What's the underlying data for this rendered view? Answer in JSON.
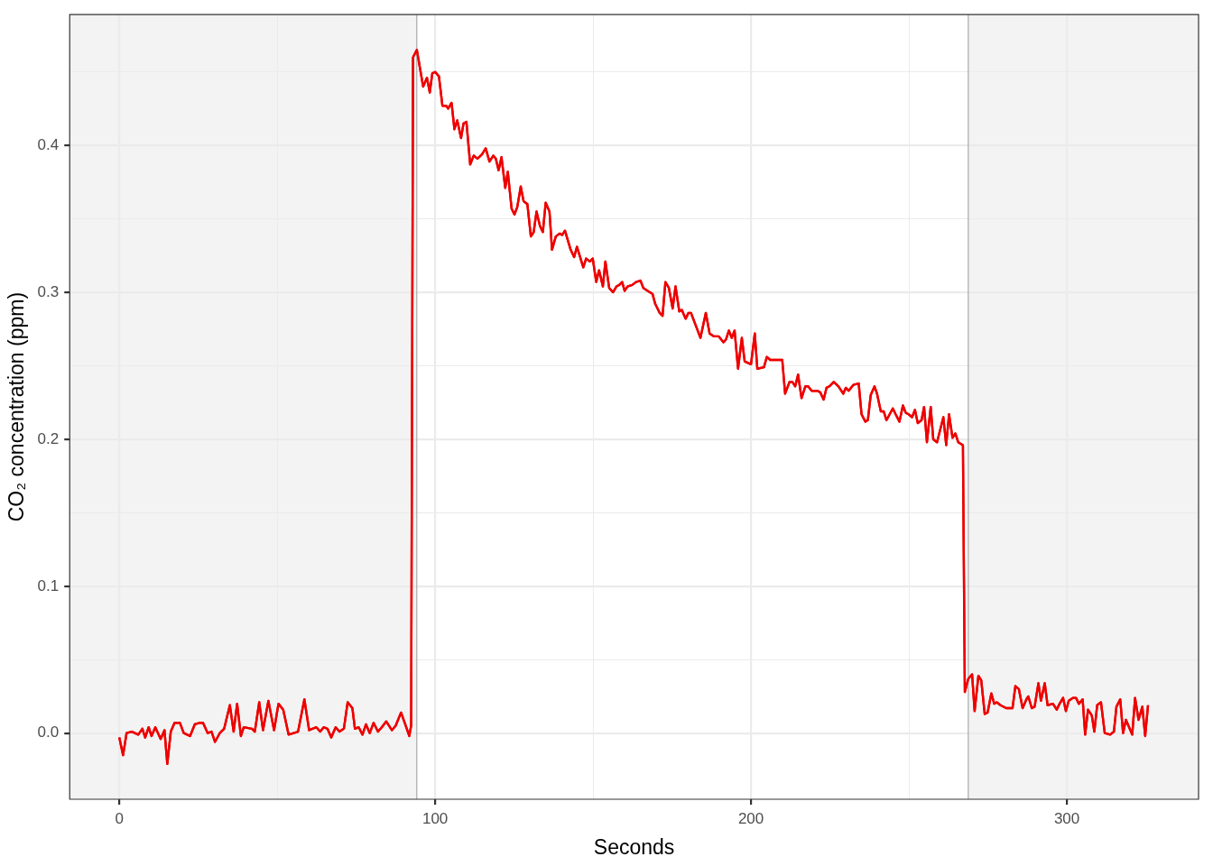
{
  "chart_data": {
    "type": "line",
    "xlabel": "Seconds",
    "ylabel": "CO₂ concentration (ppm)",
    "color": "#ee0000",
    "marker": "none",
    "line_style": "solid",
    "legend": false,
    "grid": true,
    "xlim": [
      -15.7,
      341.7
    ],
    "ylim": [
      -0.045,
      0.489
    ],
    "xticks": [
      0,
      {
        "value": 50,
        "label": null
      },
      100,
      {
        "value": 150,
        "label": null
      },
      200,
      {
        "value": 250,
        "label": null
      },
      300
    ],
    "yticks": [
      {
        "value": 0,
        "label": "0.0"
      },
      {
        "value": 0.05,
        "label": null
      },
      {
        "value": 0.1,
        "label": "0.1"
      },
      {
        "value": 0.15,
        "label": null
      },
      {
        "value": 0.2,
        "label": "0.2"
      },
      {
        "value": 0.25,
        "label": null
      },
      {
        "value": 0.3,
        "label": "0.3"
      },
      {
        "value": 0.35,
        "label": null
      },
      {
        "value": 0.4,
        "label": "0.4"
      },
      {
        "value": 0.45,
        "label": null
      }
    ],
    "bands": [
      {
        "axis": "x",
        "from": -15.7,
        "to": 94.2,
        "color": "#f3f3f3"
      },
      {
        "axis": "x",
        "from": 268.8,
        "to": 341.7,
        "color": "#f3f3f3"
      }
    ],
    "ref_lines": [
      {
        "axis": "x",
        "value": 94.2,
        "color": "#9a9a9a"
      },
      {
        "axis": "x",
        "value": 268.8,
        "color": "#9a9a9a"
      }
    ],
    "x": [
      0,
      1.2,
      2.3,
      4,
      6,
      7.3,
      8.2,
      9.3,
      10.2,
      11.4,
      13.1,
      14.3,
      15.2,
      16.3,
      17.5,
      19.2,
      20.4,
      22.4,
      23.9,
      25.4,
      26.5,
      28,
      29.2,
      30.3,
      31.8,
      33.2,
      35,
      36.2,
      37.3,
      38.5,
      39.4,
      42,
      42.9,
      44.3,
      45.5,
      47.2,
      49,
      50.4,
      51.9,
      53.6,
      56.6,
      58.6,
      60.1,
      62.4,
      63.6,
      64.7,
      65.9,
      67.1,
      68.5,
      69.7,
      71.1,
      72.3,
      73.8,
      74.6,
      75.8,
      77,
      78.1,
      79.3,
      80.5,
      81.9,
      83.1,
      84.5,
      86.3,
      87.5,
      89.2,
      90.7,
      91.8,
      92.4,
      93,
      94.2,
      96.2,
      97.4,
      98.3,
      99.1,
      100,
      101.2,
      102.3,
      103.5,
      104.1,
      105.2,
      106.1,
      107,
      108.2,
      109,
      109.9,
      111.1,
      112.2,
      113.4,
      114.9,
      116,
      117.2,
      118.4,
      119.2,
      120.1,
      121,
      122.2,
      123,
      124.2,
      125.1,
      126,
      127.1,
      128,
      129.2,
      130.3,
      131.2,
      132.1,
      133.2,
      134.1,
      135,
      136.2,
      137,
      138.2,
      139.4,
      140.2,
      141.1,
      142.9,
      144,
      144.9,
      146.9,
      147.8,
      149,
      149.9,
      151,
      151.9,
      153.1,
      153.9,
      155.1,
      156.3,
      157.4,
      158.3,
      159.2,
      160,
      160.9,
      162.4,
      163.6,
      165,
      165.9,
      167.3,
      168.8,
      169.7,
      171.1,
      172,
      172.9,
      174,
      175.2,
      176.1,
      177.3,
      178.1,
      179.3,
      180.2,
      181,
      184,
      185.7,
      186.9,
      188.3,
      189.8,
      191.3,
      192.1,
      193,
      193.9,
      194.8,
      195.9,
      197.1,
      198,
      200,
      201.2,
      202,
      204.1,
      205,
      206.1,
      207,
      208.2,
      209.9,
      210.8,
      212.2,
      213.1,
      214,
      214.9,
      216,
      217.2,
      218.1,
      219.2,
      221,
      221.9,
      223,
      223.9,
      224.8,
      226.2,
      227.7,
      229.2,
      230,
      230.9,
      232.4,
      234.1,
      235,
      236.2,
      237,
      237.9,
      239.1,
      239.9,
      241.1,
      242,
      242.9,
      244.9,
      245.8,
      247,
      248.1,
      249,
      249.9,
      251,
      251.9,
      252.8,
      254,
      254.8,
      255.7,
      256.9,
      257.7,
      258.9,
      260.9,
      261.8,
      262.7,
      263.8,
      264.7,
      265.6,
      267.1,
      267.7,
      268.8,
      270,
      270.8,
      272,
      272.9,
      274,
      274.9,
      276.1,
      277,
      277.8,
      279,
      280.8,
      282.8,
      283.7,
      284.8,
      286,
      287.2,
      287.8,
      288.9,
      289.8,
      291,
      291.8,
      293,
      293.9,
      295.6,
      296.8,
      297.7,
      298.8,
      299.7,
      300.6,
      302,
      302.9,
      303.8,
      305,
      305.8,
      306.7,
      307.9,
      308.7,
      309.6,
      310.8,
      312,
      313.7,
      314.9,
      315.7,
      316.9,
      317.8,
      318.7,
      320.7,
      321.6,
      322.7,
      323.9,
      324.8,
      325.7
    ],
    "values": [
      -0.003,
      -0.015,
      0,
      0.001,
      -0.001,
      0.003,
      -0.003,
      0.004,
      -0.002,
      0.004,
      -0.004,
      0.002,
      -0.021,
      0.001,
      0.007,
      0.007,
      0,
      -0.002,
      0.006,
      0.007,
      0.007,
      0,
      0.001,
      -0.006,
      0,
      0.003,
      0.019,
      0.001,
      0.02,
      -0.002,
      0.004,
      0.003,
      0.001,
      0.021,
      0.002,
      0.022,
      0.002,
      0.02,
      0.016,
      -0.001,
      0.001,
      0.023,
      0.002,
      0.004,
      0.001,
      0.004,
      0.003,
      -0.003,
      0.004,
      0.001,
      0.003,
      0.021,
      0.017,
      0.003,
      0.004,
      -0.001,
      0.006,
      0,
      0.007,
      0.001,
      0.004,
      0.008,
      0.002,
      0.005,
      0.014,
      0.005,
      -0.002,
      0.005,
      0.46,
      0.465,
      0.44,
      0.446,
      0.436,
      0.449,
      0.45,
      0.447,
      0.427,
      0.427,
      0.425,
      0.429,
      0.411,
      0.417,
      0.405,
      0.415,
      0.416,
      0.387,
      0.393,
      0.391,
      0.394,
      0.398,
      0.389,
      0.393,
      0.391,
      0.383,
      0.392,
      0.371,
      0.382,
      0.357,
      0.353,
      0.358,
      0.372,
      0.362,
      0.36,
      0.338,
      0.341,
      0.355,
      0.345,
      0.341,
      0.361,
      0.355,
      0.329,
      0.338,
      0.34,
      0.339,
      0.342,
      0.329,
      0.324,
      0.331,
      0.317,
      0.323,
      0.321,
      0.323,
      0.307,
      0.315,
      0.304,
      0.321,
      0.303,
      0.3,
      0.304,
      0.305,
      0.307,
      0.301,
      0.304,
      0.305,
      0.307,
      0.308,
      0.303,
      0.301,
      0.299,
      0.292,
      0.286,
      0.284,
      0.307,
      0.303,
      0.289,
      0.304,
      0.287,
      0.288,
      0.282,
      0.286,
      0.286,
      0.269,
      0.286,
      0.272,
      0.27,
      0.27,
      0.266,
      0.268,
      0.274,
      0.269,
      0.274,
      0.248,
      0.269,
      0.253,
      0.251,
      0.272,
      0.248,
      0.249,
      0.256,
      0.254,
      0.254,
      0.254,
      0.254,
      0.231,
      0.239,
      0.239,
      0.236,
      0.244,
      0.228,
      0.236,
      0.236,
      0.233,
      0.233,
      0.232,
      0.227,
      0.235,
      0.236,
      0.239,
      0.236,
      0.231,
      0.235,
      0.233,
      0.237,
      0.238,
      0.217,
      0.212,
      0.213,
      0.23,
      0.236,
      0.231,
      0.219,
      0.219,
      0.213,
      0.221,
      0.217,
      0.212,
      0.223,
      0.218,
      0.217,
      0.215,
      0.22,
      0.211,
      0.213,
      0.222,
      0.198,
      0.222,
      0.2,
      0.198,
      0.215,
      0.196,
      0.217,
      0.201,
      0.204,
      0.198,
      0.196,
      0.028,
      0.037,
      0.04,
      0.015,
      0.039,
      0.036,
      0.013,
      0.014,
      0.027,
      0.02,
      0.021,
      0.019,
      0.017,
      0.017,
      0.032,
      0.03,
      0.017,
      0.023,
      0.025,
      0.017,
      0.018,
      0.034,
      0.022,
      0.034,
      0.019,
      0.02,
      0.016,
      0.02,
      0.024,
      0.015,
      0.022,
      0.024,
      0.024,
      0.02,
      0.023,
      -0.001,
      0.016,
      0.012,
      0.001,
      0.019,
      0.021,
      0,
      -0.001,
      0.001,
      0.018,
      0.023,
      0,
      0.009,
      -0.001,
      0.024,
      0.009,
      0.018,
      -0.002,
      0.019
    ]
  }
}
